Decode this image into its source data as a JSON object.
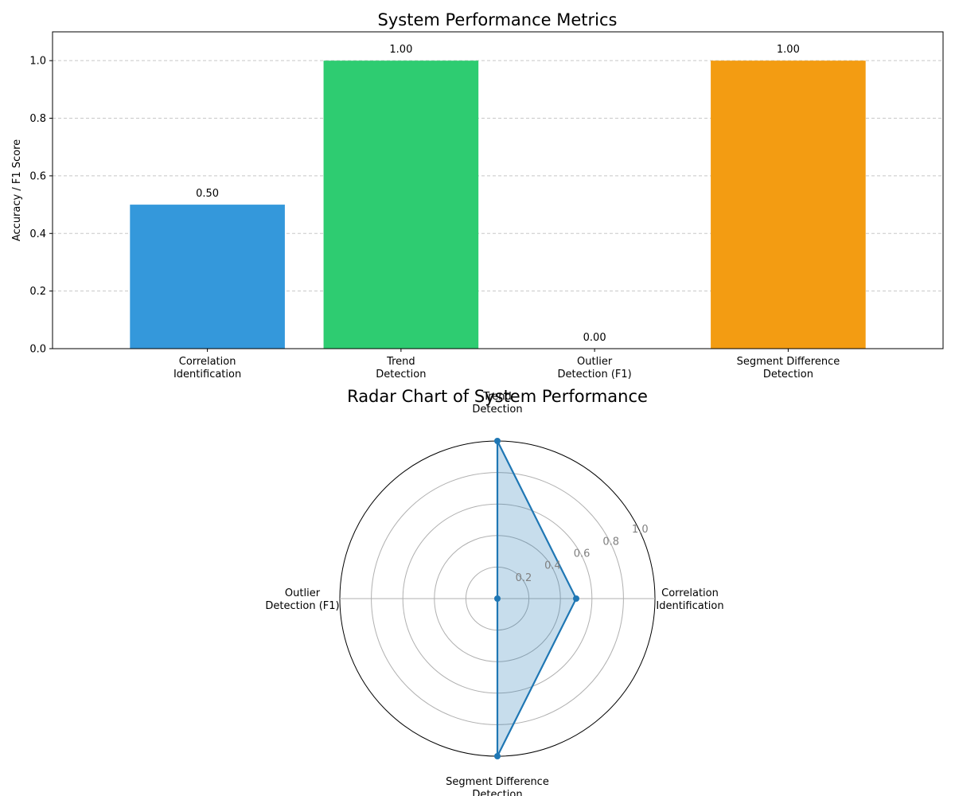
{
  "chart_data": [
    {
      "type": "bar",
      "title": "System Performance Metrics",
      "xlabel": "",
      "ylabel": "Accuracy / F1 Score",
      "categories": [
        [
          "Correlation",
          "Identification"
        ],
        [
          "Trend",
          "Detection"
        ],
        [
          "Outlier",
          "Detection (F1)"
        ],
        [
          "Segment Difference",
          "Detection"
        ]
      ],
      "values": [
        0.5,
        1.0,
        0.0,
        1.0
      ],
      "value_labels": [
        "0.50",
        "1.00",
        "0.00",
        "1.00"
      ],
      "colors": [
        "#3498db",
        "#2ecc71",
        "#e74c3c",
        "#f39c12"
      ],
      "ylim": [
        0,
        1.1
      ],
      "yticks": [
        0.0,
        0.2,
        0.4,
        0.6,
        0.8,
        1.0
      ],
      "ytick_labels": [
        "0.0",
        "0.2",
        "0.4",
        "0.6",
        "0.8",
        "1.0"
      ],
      "grid": "horizontal dashed"
    },
    {
      "type": "radar",
      "title": "Radar Chart of System Performance",
      "axes": [
        [
          "Correlation",
          "Identification"
        ],
        [
          "Trend",
          "Detection"
        ],
        [
          "Outlier",
          "Detection (F1)"
        ],
        [
          "Segment Difference",
          "Detection"
        ]
      ],
      "values": [
        0.5,
        1.0,
        0.0,
        1.0
      ],
      "rlim": [
        0,
        1.0
      ],
      "rticks": [
        0.2,
        0.4,
        0.6,
        0.8,
        1.0
      ],
      "rtick_labels": [
        "0.2",
        "0.4",
        "0.6",
        "0.8",
        "1.0"
      ],
      "line_color": "#1f77b4",
      "fill_color": "#1f77b4"
    }
  ]
}
